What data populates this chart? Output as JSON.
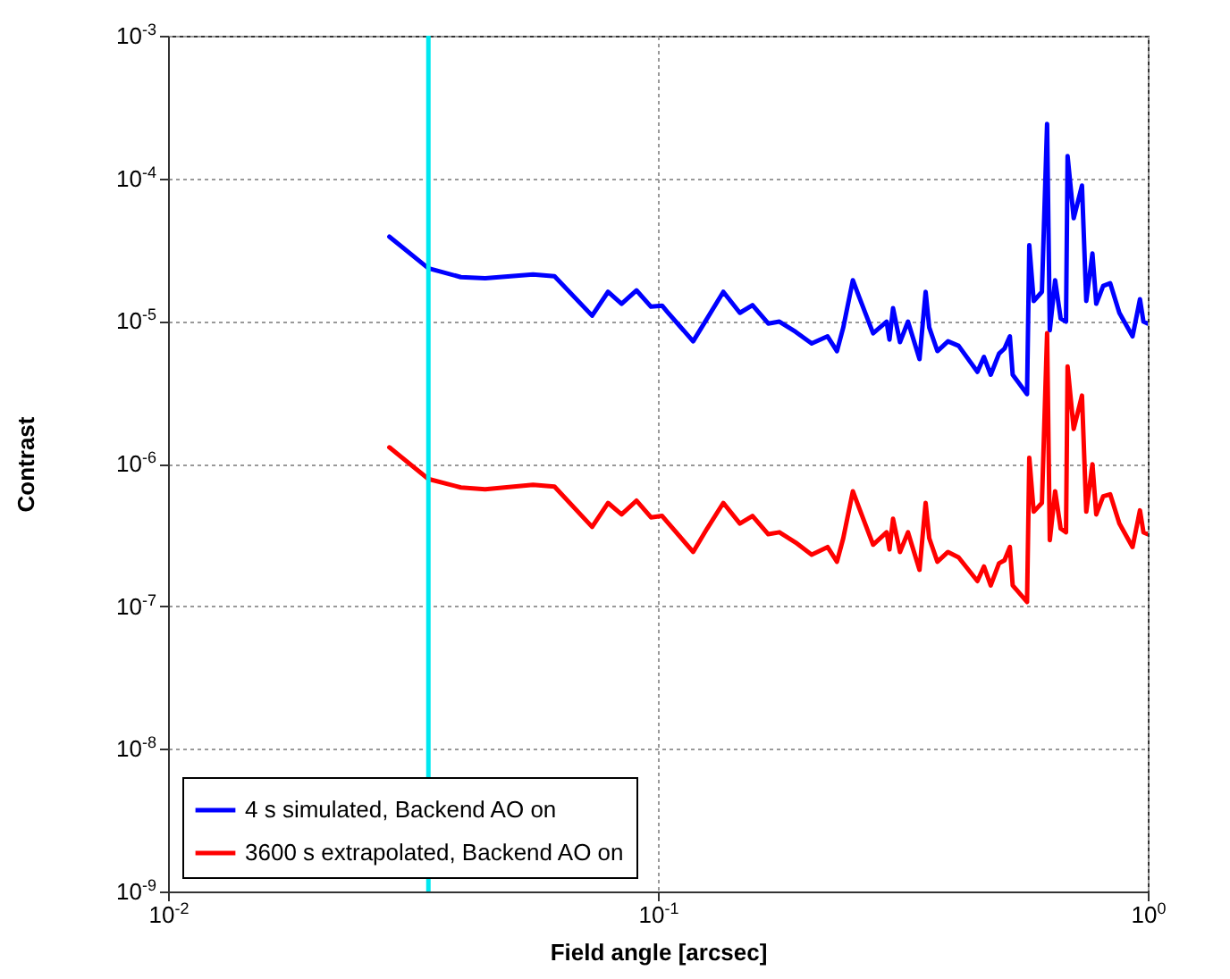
{
  "chart_data": {
    "type": "line",
    "xlabel": "Field angle [arcsec]",
    "ylabel": "Contrast",
    "log": "xy",
    "grid": true,
    "legend": "bottom left",
    "xlim": [
      0.01,
      1
    ],
    "ylim": [
      1e-09,
      0.001
    ],
    "xticks": [
      {
        "value": 0.01,
        "label": "10$^{-2}$"
      },
      {
        "value": 0.1,
        "label": "10$^{-1}$"
      },
      {
        "value": 1,
        "label": "10$^{0}$"
      }
    ],
    "yticks": [
      {
        "value": 1e-09,
        "label": "10$^{-9}$"
      },
      {
        "value": 1e-08,
        "label": "10$^{-8}$"
      },
      {
        "value": 1e-07,
        "label": "10$^{-7}$"
      },
      {
        "value": 1e-06,
        "label": "10$^{-6}$"
      },
      {
        "value": 1e-05,
        "label": "10$^{-5}$"
      },
      {
        "value": 0.0001,
        "label": "10$^{-4}$"
      },
      {
        "value": 0.001,
        "label": "10$^{-3}$"
      }
    ],
    "x": [
      0.0283,
      0.034,
      0.0396,
      0.0444,
      0.0556,
      0.0615,
      0.0734,
      0.0791,
      0.0843,
      0.0904,
      0.0968,
      0.102,
      0.1045,
      0.118,
      0.126,
      0.136,
      0.147,
      0.156,
      0.168,
      0.177,
      0.191,
      0.206,
      0.222,
      0.232,
      0.239,
      0.25,
      0.258,
      0.275,
      0.293,
      0.297,
      0.302,
      0.312,
      0.324,
      0.342,
      0.352,
      0.358,
      0.372,
      0.391,
      0.411,
      0.449,
      0.463,
      0.478,
      0.497,
      0.51,
      0.523,
      0.53,
      0.567,
      0.573,
      0.585,
      0.608,
      0.623,
      0.631,
      0.647,
      0.664,
      0.681,
      0.686,
      0.706,
      0.734,
      0.749,
      0.771,
      0.785,
      0.811,
      0.838,
      0.875,
      0.931,
      0.964,
      0.98,
      1.0
    ],
    "series": [
      {
        "name": "4 s simulated, Backend AO on",
        "color": "#0000ff",
        "values": [
          3.9e-05,
          2.34e-05,
          2.03e-05,
          1.99e-05,
          2.12e-05,
          2.06e-05,
          1.09e-05,
          1.6e-05,
          1.32e-05,
          1.64e-05,
          1.26e-05,
          1.28e-05,
          1.16e-05,
          7.2e-06,
          1.04e-05,
          1.6e-05,
          1.14e-05,
          1.29e-05,
          9.6e-06,
          9.9e-06,
          8.4e-06,
          6.95e-06,
          7.8e-06,
          6.15e-06,
          9e-06,
          1.93e-05,
          1.45e-05,
          8.2e-06,
          9.9e-06,
          7.4e-06,
          1.23e-05,
          7.1e-06,
          9.9e-06,
          5.4e-06,
          1.6e-05,
          9e-06,
          6.15e-06,
          7.2e-06,
          6.7e-06,
          4.4e-06,
          5.6e-06,
          4.2e-06,
          5.9e-06,
          6.4e-06,
          7.8e-06,
          4.2e-06,
          3.07e-06,
          3.4e-05,
          1.38e-05,
          1.6e-05,
          0.000241,
          8.6e-06,
          1.93e-05,
          1.04e-05,
          9.9e-06,
          0.000143,
          5.25e-05,
          8.9e-05,
          1.38e-05,
          2.97e-05,
          1.32e-05,
          1.76e-05,
          1.84e-05,
          1.14e-05,
          7.8e-06,
          1.42e-05,
          9.9e-06,
          9.6e-06
        ]
      },
      {
        "name": "3600 s extrapolated, Backend AO on",
        "color": "#ff0000",
        "values": [
          1.3e-06,
          7.8e-07,
          6.8e-07,
          6.6e-07,
          7.1e-07,
          6.9e-07,
          3.6e-07,
          5.3e-07,
          4.4e-07,
          5.5e-07,
          4.2e-07,
          4.3e-07,
          3.9e-07,
          2.4e-07,
          3.5e-07,
          5.3e-07,
          3.8e-07,
          4.3e-07,
          3.2e-07,
          3.3e-07,
          2.8e-07,
          2.3e-07,
          2.6e-07,
          2.05e-07,
          3e-07,
          6.4e-07,
          4.8e-07,
          2.7e-07,
          3.3e-07,
          2.5e-07,
          4.1e-07,
          2.4e-07,
          3.3e-07,
          1.8e-07,
          5.3e-07,
          3e-07,
          2.05e-07,
          2.4e-07,
          2.2e-07,
          1.5e-07,
          1.9e-07,
          1.4e-07,
          2e-07,
          2.1e-07,
          2.6e-07,
          1.4e-07,
          1.07e-07,
          1.1e-06,
          4.6e-07,
          5.3e-07,
          8.2e-06,
          2.9e-07,
          6.4e-07,
          3.5e-07,
          3.3e-07,
          4.8e-06,
          1.75e-06,
          3e-06,
          4.6e-07,
          9.9e-07,
          4.4e-07,
          5.9e-07,
          6.1e-07,
          3.8e-07,
          2.6e-07,
          4.7e-07,
          3.3e-07,
          3.2e-07
        ]
      }
    ],
    "ref_lines": [
      {
        "axis": "x",
        "value": 0.034,
        "color": "#00e8f0"
      }
    ]
  }
}
